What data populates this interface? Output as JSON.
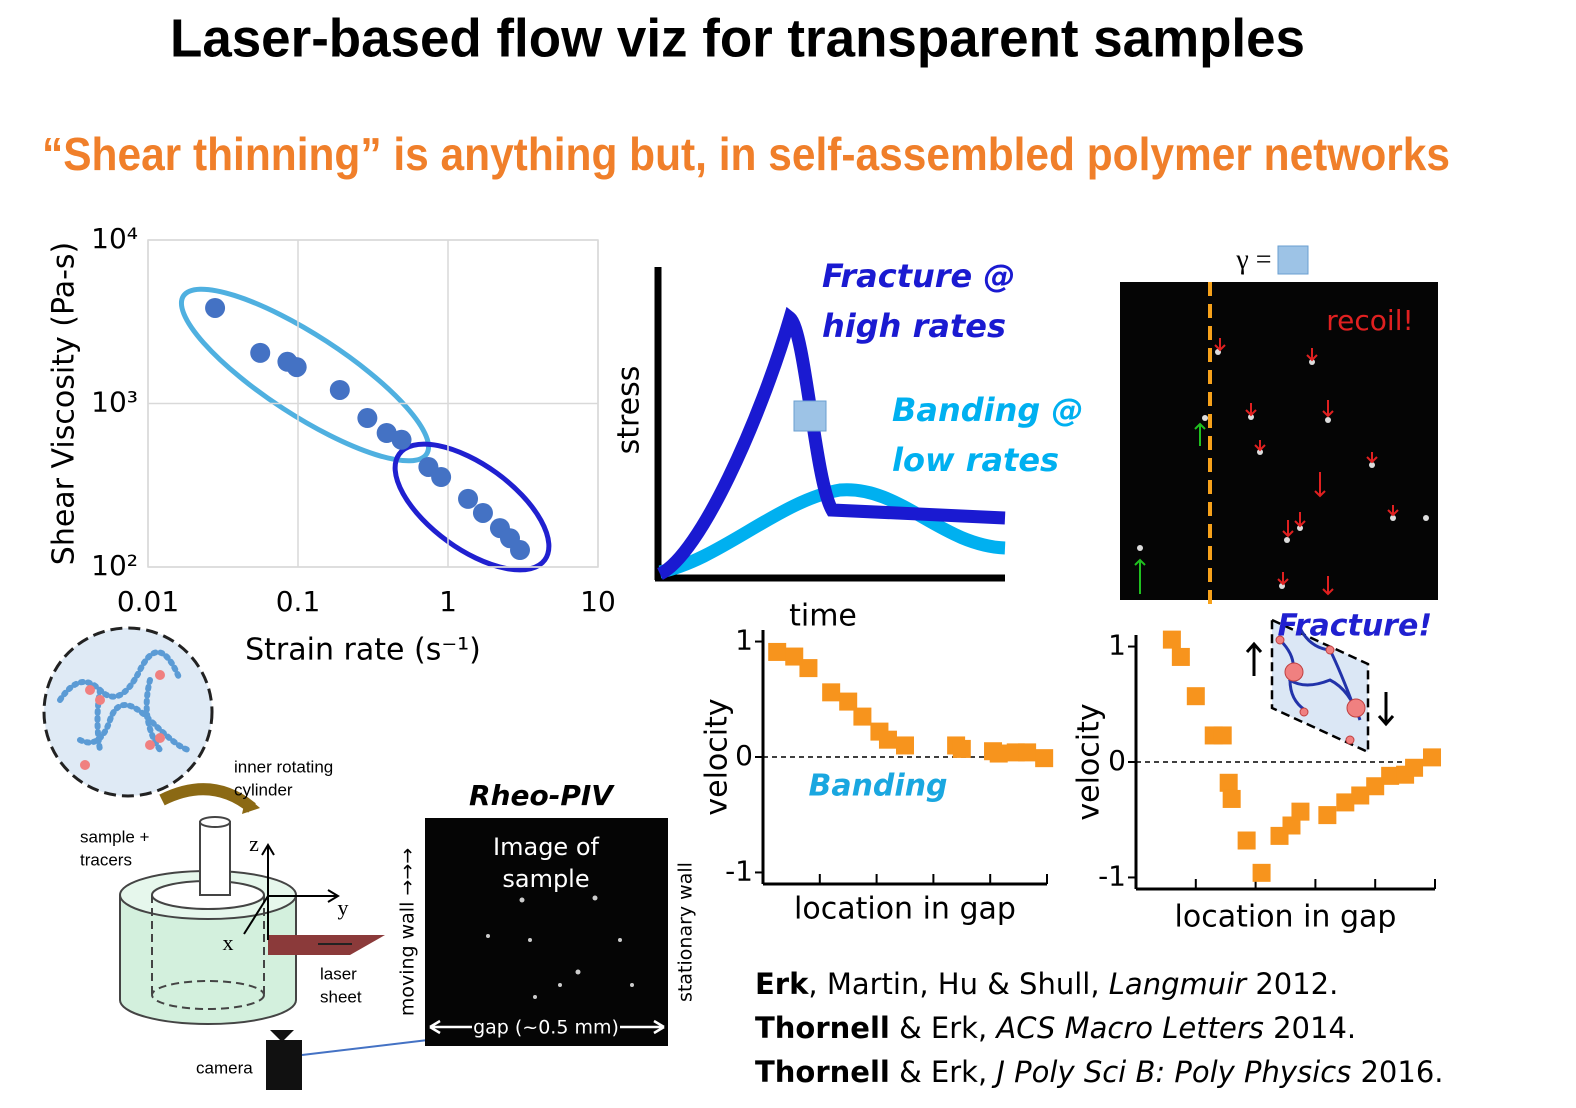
{
  "title": "Laser-based flow viz for transparent samples",
  "subtitle": "“Shear thinning” is anything but, in self-assembled polymer networks",
  "chart_data": [
    {
      "type": "scatter",
      "xlabel": "Strain rate (s⁻¹)",
      "ylabel": "Shear Viscosity (Pa-s)",
      "xscale": "log",
      "yscale": "log",
      "xlim": [
        0.01,
        10
      ],
      "ylim": [
        100,
        10000
      ],
      "xticks": [
        0.01,
        0.1,
        1,
        10
      ],
      "yticks": [
        {
          "value": 100,
          "label": "10²"
        },
        {
          "value": 1000,
          "label": "10³"
        },
        {
          "value": 10000,
          "label": "10⁴"
        }
      ],
      "grid": true,
      "marker": "circle",
      "color": "#4472c4",
      "x": [
        0.028,
        0.056,
        0.085,
        0.098,
        0.19,
        0.29,
        0.39,
        0.49,
        0.74,
        0.9,
        1.36,
        1.71,
        2.22,
        2.59,
        3.02
      ],
      "values": [
        3840,
        2040,
        1800,
        1670,
        1210,
        815,
        660,
        600,
        409,
        355,
        261,
        214,
        173,
        150,
        127
      ]
    },
    {
      "type": "scatter",
      "xlabel": "location in gap",
      "ylabel": "velocity",
      "annotation": "Banding",
      "xlim": [
        0,
        1
      ],
      "ylim": [
        -1.1,
        1.1
      ],
      "yticks": [
        -1,
        0,
        1
      ],
      "grid": false,
      "marker": "square",
      "color": "#f7941d",
      "x": [
        0.05,
        0.11,
        0.16,
        0.24,
        0.3,
        0.35,
        0.41,
        0.44,
        0.5,
        0.68,
        0.7,
        0.81,
        0.83,
        0.89,
        0.93,
        0.99
      ],
      "values": [
        0.91,
        0.87,
        0.77,
        0.56,
        0.48,
        0.35,
        0.22,
        0.15,
        0.1,
        0.1,
        0.07,
        0.05,
        0.03,
        0.04,
        0.04,
        -0.01
      ]
    },
    {
      "type": "scatter",
      "xlabel": "location in gap",
      "ylabel": "velocity",
      "annotation": "Fracture!",
      "xlim": [
        0,
        1
      ],
      "ylim": [
        -1.1,
        1.1
      ],
      "yticks": [
        -1,
        0,
        1
      ],
      "grid": false,
      "marker": "square",
      "color": "#f7941d",
      "x": [
        0.12,
        0.15,
        0.2,
        0.26,
        0.29,
        0.31,
        0.32,
        0.37,
        0.42,
        0.48,
        0.52,
        0.55,
        0.64,
        0.7,
        0.75,
        0.8,
        0.85,
        0.9,
        0.93,
        0.99
      ],
      "values": [
        1.06,
        0.91,
        0.57,
        0.23,
        0.23,
        -0.18,
        -0.32,
        -0.68,
        -0.96,
        -0.64,
        -0.55,
        -0.43,
        -0.46,
        -0.35,
        -0.29,
        -0.21,
        -0.12,
        -0.11,
        -0.05,
        0.04
      ]
    }
  ],
  "stress_sketch": {
    "ylabel": "stress",
    "xlabel": "time",
    "fracture_label": [
      "Fracture @",
      "high rates"
    ],
    "banding_label": [
      "Banding @",
      "low rates"
    ]
  },
  "piv_image": {
    "strain_label": "γ =",
    "annotation": "recoil!"
  },
  "rheo_piv": {
    "title": "Rheo-PIV",
    "image_label": [
      "Image of",
      "sample"
    ],
    "left_wall": "moving wall →→→",
    "right_wall": "stationary wall",
    "gap": "gap (~0.5  mm)"
  },
  "apparatus": {
    "cylinder": [
      "inner rotating",
      "cylinder"
    ],
    "sample": [
      "sample +",
      "tracers"
    ],
    "laser": [
      "laser",
      "sheet"
    ],
    "camera": "camera",
    "axes": [
      "z",
      "y",
      "x"
    ]
  },
  "citations": [
    {
      "lead": "Erk",
      "authors": ", Martin, Hu & Shull,",
      "journal": "Langmuir",
      "year": "2012."
    },
    {
      "lead": "Thornell",
      "authors": "& Erk,",
      "journal": "ACS Macro Letters",
      "year": "2014."
    },
    {
      "lead": "Thornell",
      "authors": "& Erk,",
      "journal": "J Poly Sci B: Poly Physics",
      "year": "2016."
    }
  ]
}
